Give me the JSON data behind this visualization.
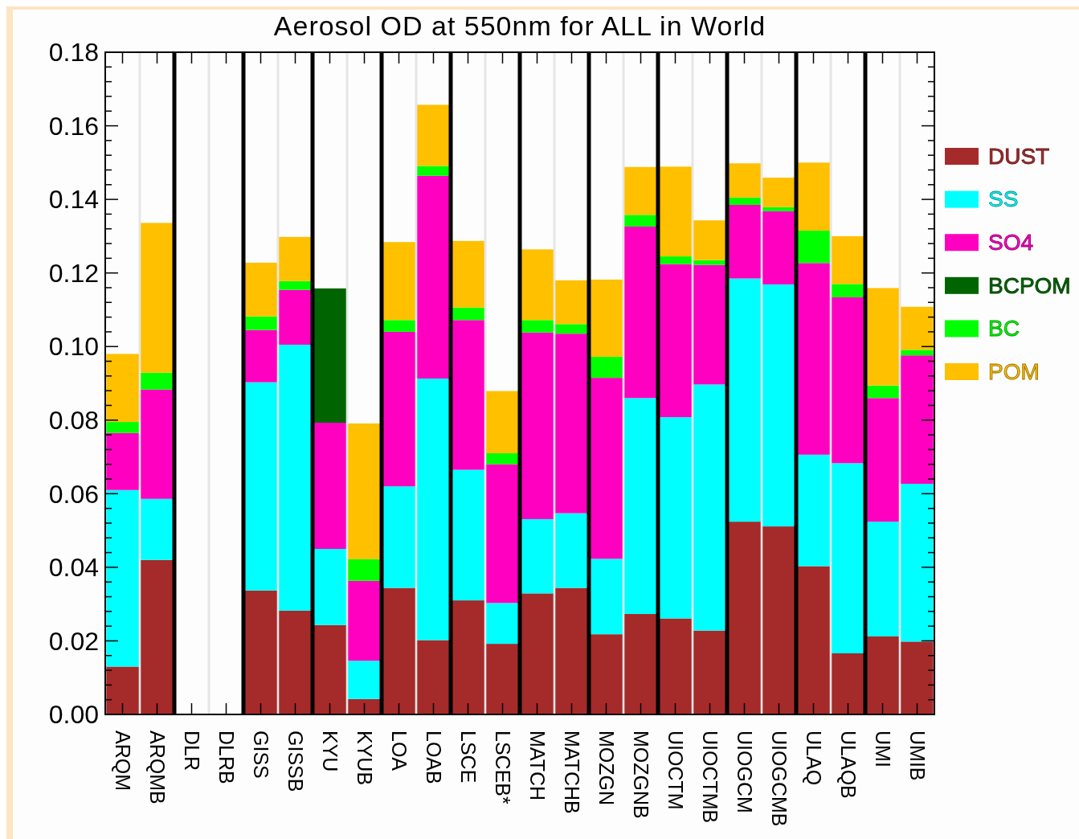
{
  "chart_data": {
    "type": "bar",
    "stacked": true,
    "title": "Aerosol OD at 550nm for ALL in World",
    "categories": [
      "ARQM",
      "ARQMB",
      "DLR",
      "DLRB",
      "GISS",
      "GISSB",
      "KYU",
      "KYUB",
      "LOA",
      "LOAB",
      "LSCE",
      "LSCEB*",
      "MATCH",
      "MATCHB",
      "MOZGN",
      "MOZGNB",
      "UIOCTM",
      "UIOCTMB",
      "UIOGCM",
      "UIOGCMB",
      "ULAQ",
      "ULAQB",
      "UMI",
      "UMIB"
    ],
    "series": [
      {
        "name": "DUST",
        "color": "#a52a2a",
        "values": [
          0.013,
          0.042,
          null,
          null,
          0.0337,
          0.0282,
          0.0243,
          0.0042,
          0.0344,
          0.0202,
          0.031,
          0.0192,
          0.0329,
          0.0344,
          0.0218,
          0.0273,
          0.0261,
          0.0228,
          0.0524,
          0.0511,
          0.0403,
          0.0166,
          0.0212,
          0.0198
        ]
      },
      {
        "name": "SS",
        "color": "#00ffff",
        "values": [
          0.048,
          0.0166,
          null,
          null,
          0.0566,
          0.0723,
          0.0207,
          0.0104,
          0.0276,
          0.0711,
          0.0355,
          0.0111,
          0.0202,
          0.0203,
          0.0205,
          0.0587,
          0.0547,
          0.0669,
          0.0661,
          0.0658,
          0.0303,
          0.0517,
          0.0312,
          0.0429
        ]
      },
      {
        "name": "SO4",
        "color": "#ff00c0",
        "values": [
          0.0155,
          0.0297,
          null,
          null,
          0.0142,
          0.0149,
          0.0343,
          0.0217,
          0.042,
          0.0551,
          0.0407,
          0.0377,
          0.0507,
          0.0488,
          0.0492,
          0.0466,
          0.0416,
          0.0325,
          0.02,
          0.0199,
          0.0521,
          0.0451,
          0.0336,
          0.0349
        ]
      },
      {
        "name": "BCPOM",
        "color": "#006400",
        "values": [
          null,
          null,
          null,
          null,
          null,
          null,
          0.0365,
          null,
          null,
          null,
          null,
          null,
          null,
          null,
          null,
          null,
          null,
          null,
          null,
          null,
          null,
          null,
          null,
          null
        ]
      },
      {
        "name": "BC",
        "color": "#00ff00",
        "values": [
          0.003,
          0.0046,
          null,
          null,
          0.0037,
          0.0024,
          null,
          0.0059,
          0.0032,
          0.0027,
          0.0034,
          0.003,
          0.0034,
          0.0026,
          0.0057,
          0.0032,
          0.0021,
          0.0013,
          0.002,
          0.0011,
          0.0088,
          0.0036,
          0.0034,
          0.0015
        ]
      },
      {
        "name": "POM",
        "color": "#ffc000",
        "values": [
          0.0185,
          0.0407,
          null,
          null,
          0.0146,
          0.012,
          null,
          0.0369,
          0.0212,
          0.0166,
          0.0181,
          0.0169,
          0.0192,
          0.0119,
          0.021,
          0.013,
          0.0244,
          0.0108,
          0.0093,
          0.008,
          0.0185,
          0.013,
          0.0265,
          0.0117
        ]
      }
    ],
    "ylim": [
      0,
      0.18
    ],
    "yticks": [
      {
        "value": 0,
        "label": "0.00"
      },
      {
        "value": 0.004,
        "label": null
      },
      {
        "value": 0.008,
        "label": null
      },
      {
        "value": 0.012,
        "label": null
      },
      {
        "value": 0.016,
        "label": null
      },
      {
        "value": 0.02,
        "label": "0.02"
      },
      {
        "value": 0.024,
        "label": null
      },
      {
        "value": 0.028,
        "label": null
      },
      {
        "value": 0.032,
        "label": null
      },
      {
        "value": 0.036,
        "label": null
      },
      {
        "value": 0.04,
        "label": "0.04"
      },
      {
        "value": 0.044,
        "label": null
      },
      {
        "value": 0.048,
        "label": null
      },
      {
        "value": 0.052,
        "label": null
      },
      {
        "value": 0.056,
        "label": null
      },
      {
        "value": 0.06,
        "label": "0.06"
      },
      {
        "value": 0.064,
        "label": null
      },
      {
        "value": 0.068,
        "label": null
      },
      {
        "value": 0.072,
        "label": null
      },
      {
        "value": 0.076,
        "label": null
      },
      {
        "value": 0.08,
        "label": "0.08"
      },
      {
        "value": 0.084,
        "label": null
      },
      {
        "value": 0.088,
        "label": null
      },
      {
        "value": 0.092,
        "label": null
      },
      {
        "value": 0.096,
        "label": null
      },
      {
        "value": 0.1,
        "label": "0.10"
      },
      {
        "value": 0.104,
        "label": null
      },
      {
        "value": 0.108,
        "label": null
      },
      {
        "value": 0.112,
        "label": null
      },
      {
        "value": 0.116,
        "label": null
      },
      {
        "value": 0.12,
        "label": "0.12"
      },
      {
        "value": 0.124,
        "label": null
      },
      {
        "value": 0.128,
        "label": null
      },
      {
        "value": 0.132,
        "label": null
      },
      {
        "value": 0.136,
        "label": null
      },
      {
        "value": 0.14,
        "label": "0.14"
      },
      {
        "value": 0.144,
        "label": null
      },
      {
        "value": 0.148,
        "label": null
      },
      {
        "value": 0.152,
        "label": null
      },
      {
        "value": 0.156,
        "label": null
      },
      {
        "value": 0.16,
        "label": "0.16"
      },
      {
        "value": 0.164,
        "label": null
      },
      {
        "value": 0.168,
        "label": null
      },
      {
        "value": 0.172,
        "label": null
      },
      {
        "value": 0.176,
        "label": null
      },
      {
        "value": 0.18,
        "label": "0.18"
      }
    ],
    "legend": "right",
    "grid": false
  }
}
